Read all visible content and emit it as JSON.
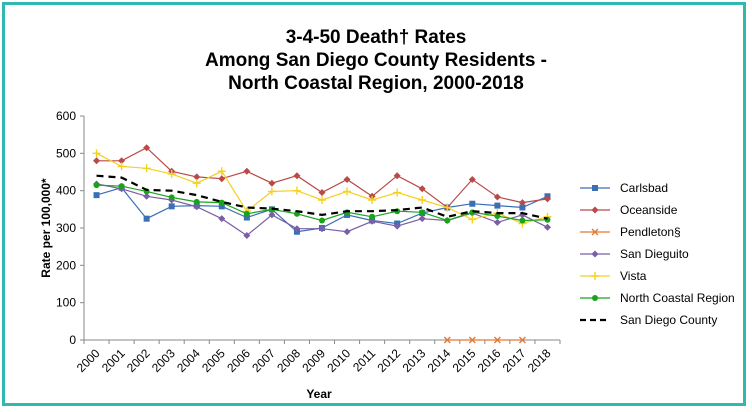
{
  "chart_data": {
    "type": "line",
    "title_lines": [
      "3-4-50 Death† Rates",
      "Among San Diego County Residents -",
      "North Coastal Region, 2000-2018"
    ],
    "xlabel": "Year",
    "ylabel": "Rate per 100,000*",
    "ylim": [
      0,
      600
    ],
    "yticks": [
      "0",
      "100",
      "200",
      "300",
      "400",
      "500",
      "600"
    ],
    "x": [
      "2000",
      "2001",
      "2002",
      "2003",
      "2004",
      "2005",
      "2006",
      "2007",
      "2008",
      "2009",
      "2010",
      "2011",
      "2012",
      "2013",
      "2014",
      "2015",
      "2016",
      "2017",
      "2018"
    ],
    "grid": false,
    "legend_position": "right",
    "series": [
      {
        "name": "Carlsbad",
        "color": "#3a6fb5",
        "marker": "square",
        "dash": false,
        "values": [
          388,
          408,
          325,
          358,
          360,
          358,
          328,
          350,
          290,
          300,
          335,
          320,
          312,
          340,
          355,
          365,
          360,
          355,
          385
        ]
      },
      {
        "name": "Oceanside",
        "color": "#b94a48",
        "marker": "diamond",
        "dash": false,
        "values": [
          480,
          480,
          515,
          452,
          437,
          432,
          452,
          420,
          440,
          395,
          430,
          385,
          440,
          405,
          355,
          430,
          383,
          368,
          378
        ]
      },
      {
        "name": "Pendleton§",
        "color": "#e07b39",
        "marker": "x",
        "dash": false,
        "values": [
          null,
          null,
          null,
          null,
          null,
          null,
          null,
          null,
          null,
          null,
          null,
          null,
          null,
          null,
          0,
          0,
          0,
          0,
          null
        ]
      },
      {
        "name": "San Dieguito",
        "color": "#7b5ea7",
        "marker": "diamond",
        "dash": false,
        "values": [
          418,
          405,
          385,
          375,
          357,
          325,
          280,
          335,
          298,
          298,
          290,
          318,
          305,
          325,
          320,
          340,
          315,
          335,
          302
        ]
      },
      {
        "name": "Vista",
        "color": "#f5d020",
        "marker": "plus",
        "dash": false,
        "values": [
          500,
          465,
          460,
          445,
          420,
          452,
          345,
          398,
          400,
          375,
          398,
          375,
          395,
          375,
          355,
          323,
          340,
          312,
          330
        ]
      },
      {
        "name": "North Coastal Region",
        "color": "#1aa31a",
        "marker": "circle",
        "dash": false,
        "values": [
          415,
          412,
          398,
          382,
          370,
          368,
          338,
          350,
          338,
          320,
          342,
          330,
          345,
          342,
          320,
          342,
          332,
          320,
          322
        ]
      },
      {
        "name": "San Diego County",
        "color": "#000000",
        "marker": "none",
        "dash": true,
        "values": [
          440,
          435,
          402,
          400,
          388,
          370,
          355,
          352,
          345,
          335,
          345,
          345,
          348,
          355,
          330,
          345,
          340,
          340,
          325
        ]
      }
    ]
  }
}
